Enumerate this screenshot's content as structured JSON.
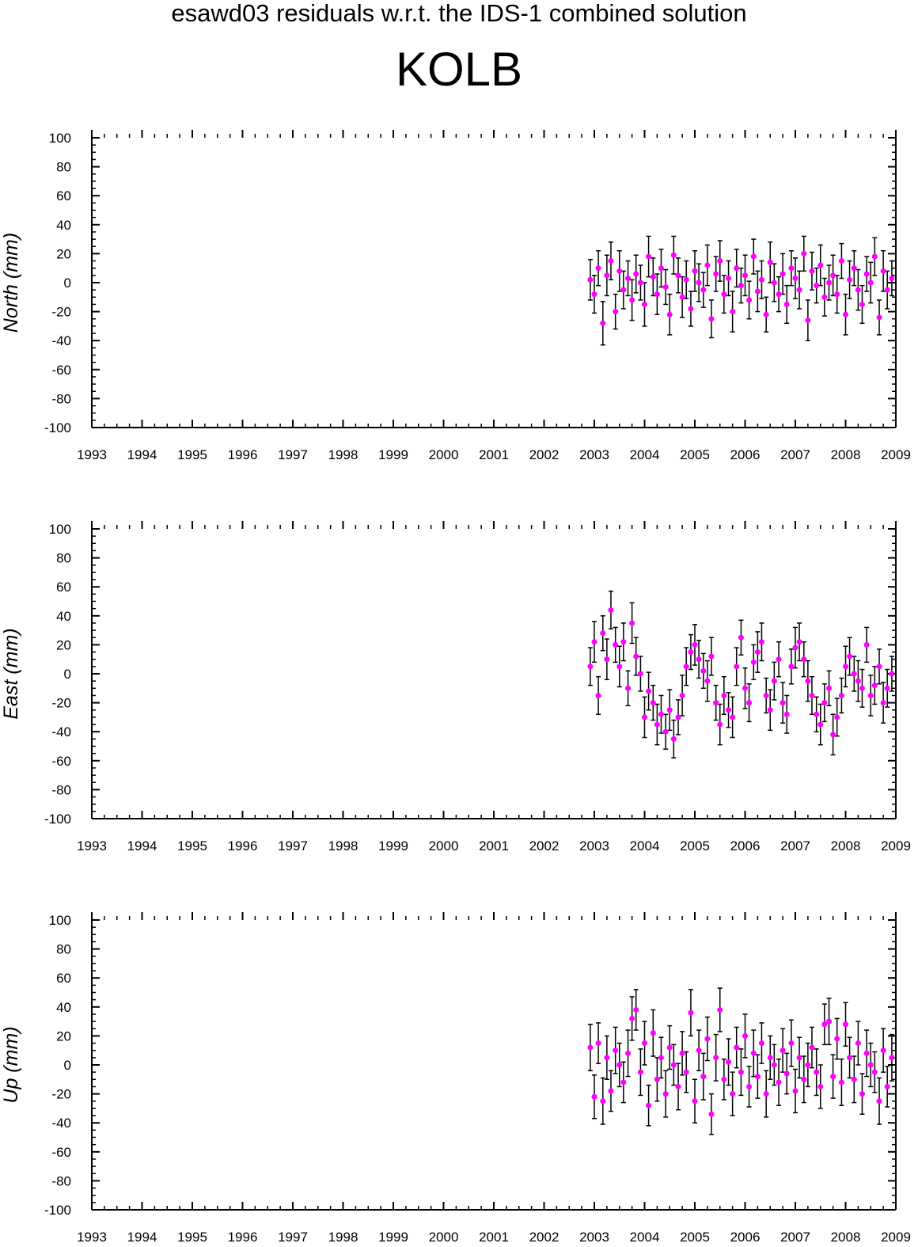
{
  "title": "esawd03 residuals w.r.t. the IDS-1 combined solution",
  "station": "KOLB",
  "colors": {
    "points": "#ff00ff",
    "error_bars": "#000000",
    "axes": "#000000"
  },
  "chart_data": [
    {
      "type": "scatter",
      "panel": "north",
      "ylabel": "North (mm)",
      "xlim": [
        1993,
        2009
      ],
      "ylim": [
        -100,
        100
      ],
      "x_ticks": [
        1993,
        1994,
        1995,
        1996,
        1997,
        1998,
        1999,
        2000,
        2001,
        2002,
        2003,
        2004,
        2005,
        2006,
        2007,
        2008,
        2009
      ],
      "y_ticks": [
        100,
        80,
        60,
        40,
        20,
        0,
        -20,
        -40,
        -60,
        -80,
        -100
      ],
      "grid": false,
      "series": [
        {
          "x": [
            2002.92,
            2003.0,
            2003.08,
            2003.17,
            2003.25,
            2003.33,
            2003.42,
            2003.5,
            2003.58,
            2003.67,
            2003.75,
            2003.83,
            2003.92,
            2004.0,
            2004.08,
            2004.17,
            2004.25,
            2004.33,
            2004.42,
            2004.5,
            2004.58,
            2004.67,
            2004.75,
            2004.83,
            2004.92,
            2005.0,
            2005.08,
            2005.17,
            2005.25,
            2005.33,
            2005.42,
            2005.5,
            2005.58,
            2005.67,
            2005.75,
            2005.83,
            2005.92,
            2006.0,
            2006.08,
            2006.17,
            2006.25,
            2006.33,
            2006.42,
            2006.5,
            2006.58,
            2006.67,
            2006.75,
            2006.83,
            2006.92,
            2007.0,
            2007.08,
            2007.17,
            2007.25,
            2007.33,
            2007.42,
            2007.5,
            2007.58,
            2007.67,
            2007.75,
            2007.83,
            2007.92,
            2008.0,
            2008.08,
            2008.17,
            2008.25,
            2008.33,
            2008.42,
            2008.5,
            2008.58,
            2008.67,
            2008.75,
            2008.83,
            2008.92
          ],
          "y": [
            2,
            -8,
            10,
            -28,
            5,
            15,
            -20,
            8,
            -5,
            3,
            -12,
            6,
            0,
            -15,
            18,
            4,
            -8,
            10,
            -3,
            -22,
            19,
            5,
            -10,
            2,
            -18,
            8,
            0,
            -5,
            12,
            -25,
            6,
            15,
            -8,
            3,
            -20,
            10,
            -2,
            5,
            -12,
            18,
            -6,
            2,
            -22,
            14,
            0,
            -8,
            6,
            -15,
            10,
            3,
            -5,
            20,
            -26,
            8,
            -2,
            12,
            -10,
            0,
            5,
            -8,
            15,
            -22,
            2,
            10,
            -5,
            -15,
            6,
            0,
            18,
            -24,
            8,
            -5,
            3
          ],
          "err": [
            14,
            13,
            12,
            15,
            14,
            13,
            12,
            14,
            13,
            12,
            14,
            13,
            12,
            15,
            14,
            13,
            14,
            13,
            12,
            14,
            13,
            12,
            14,
            13,
            12,
            14,
            13,
            12,
            14,
            13,
            12,
            14,
            13,
            12,
            14,
            13,
            12,
            14,
            13,
            12,
            14,
            13,
            12,
            14,
            13,
            12,
            14,
            13,
            12,
            14,
            13,
            12,
            14,
            13,
            12,
            14,
            13,
            12,
            14,
            13,
            12,
            14,
            13,
            12,
            14,
            13,
            12,
            14,
            13,
            12,
            14,
            13,
            12
          ]
        }
      ]
    },
    {
      "type": "scatter",
      "panel": "east",
      "ylabel": "East (mm)",
      "xlim": [
        1993,
        2009
      ],
      "ylim": [
        -100,
        100
      ],
      "x_ticks": [
        1993,
        1994,
        1995,
        1996,
        1997,
        1998,
        1999,
        2000,
        2001,
        2002,
        2003,
        2004,
        2005,
        2006,
        2007,
        2008,
        2009
      ],
      "y_ticks": [
        100,
        80,
        60,
        40,
        20,
        0,
        -20,
        -40,
        -60,
        -80,
        -100
      ],
      "grid": false,
      "series": [
        {
          "x": [
            2002.92,
            2003.0,
            2003.08,
            2003.17,
            2003.25,
            2003.33,
            2003.42,
            2003.5,
            2003.58,
            2003.67,
            2003.75,
            2003.83,
            2003.92,
            2004.0,
            2004.08,
            2004.17,
            2004.25,
            2004.33,
            2004.42,
            2004.5,
            2004.58,
            2004.67,
            2004.75,
            2004.83,
            2004.92,
            2005.0,
            2005.08,
            2005.17,
            2005.25,
            2005.33,
            2005.42,
            2005.5,
            2005.58,
            2005.67,
            2005.75,
            2005.83,
            2005.92,
            2006.0,
            2006.08,
            2006.17,
            2006.25,
            2006.33,
            2006.42,
            2006.5,
            2006.58,
            2006.67,
            2006.75,
            2006.83,
            2006.92,
            2007.0,
            2007.08,
            2007.17,
            2007.25,
            2007.33,
            2007.42,
            2007.5,
            2007.58,
            2007.67,
            2007.75,
            2007.83,
            2007.92,
            2008.0,
            2008.08,
            2008.17,
            2008.25,
            2008.33,
            2008.42,
            2008.5,
            2008.58,
            2008.67,
            2008.75,
            2008.83,
            2008.92
          ],
          "y": [
            5,
            22,
            -15,
            28,
            10,
            44,
            20,
            5,
            22,
            -10,
            35,
            12,
            0,
            -30,
            -12,
            -20,
            -35,
            -28,
            -40,
            -25,
            -45,
            -30,
            -15,
            5,
            15,
            20,
            10,
            2,
            -5,
            12,
            -20,
            -35,
            -15,
            -25,
            -30,
            5,
            25,
            -10,
            -20,
            8,
            15,
            22,
            -15,
            -25,
            -5,
            10,
            -20,
            -28,
            5,
            18,
            22,
            10,
            -5,
            -15,
            -28,
            -35,
            -20,
            -10,
            -42,
            -30,
            -15,
            5,
            12,
            0,
            -5,
            -10,
            20,
            -15,
            -8,
            5,
            -20,
            -10,
            0
          ],
          "err": [
            13,
            14,
            13,
            12,
            14,
            13,
            12,
            14,
            13,
            12,
            14,
            13,
            12,
            14,
            13,
            12,
            14,
            13,
            12,
            14,
            13,
            12,
            14,
            13,
            12,
            14,
            13,
            12,
            14,
            13,
            12,
            14,
            13,
            12,
            14,
            13,
            12,
            14,
            13,
            12,
            14,
            13,
            12,
            14,
            13,
            12,
            14,
            13,
            12,
            14,
            13,
            12,
            14,
            13,
            12,
            14,
            13,
            12,
            14,
            13,
            12,
            14,
            13,
            12,
            14,
            13,
            12,
            14,
            13,
            12,
            14,
            13,
            12
          ]
        }
      ]
    },
    {
      "type": "scatter",
      "panel": "up",
      "ylabel": "Up (mm)",
      "xlim": [
        1993,
        2009
      ],
      "ylim": [
        -100,
        100
      ],
      "x_ticks": [
        1993,
        1994,
        1995,
        1996,
        1997,
        1998,
        1999,
        2000,
        2001,
        2002,
        2003,
        2004,
        2005,
        2006,
        2007,
        2008,
        2009
      ],
      "y_ticks": [
        100,
        80,
        60,
        40,
        20,
        0,
        -20,
        -40,
        -60,
        -80,
        -100
      ],
      "grid": false,
      "series": [
        {
          "x": [
            2002.92,
            2003.0,
            2003.08,
            2003.17,
            2003.25,
            2003.33,
            2003.42,
            2003.5,
            2003.58,
            2003.67,
            2003.75,
            2003.83,
            2003.92,
            2004.0,
            2004.08,
            2004.17,
            2004.25,
            2004.33,
            2004.42,
            2004.5,
            2004.58,
            2004.67,
            2004.75,
            2004.83,
            2004.92,
            2005.0,
            2005.08,
            2005.17,
            2005.25,
            2005.33,
            2005.42,
            2005.5,
            2005.58,
            2005.67,
            2005.75,
            2005.83,
            2005.92,
            2006.0,
            2006.08,
            2006.17,
            2006.25,
            2006.33,
            2006.42,
            2006.5,
            2006.58,
            2006.67,
            2006.75,
            2006.83,
            2006.92,
            2007.0,
            2007.08,
            2007.17,
            2007.25,
            2007.33,
            2007.42,
            2007.5,
            2007.58,
            2007.67,
            2007.75,
            2007.83,
            2007.92,
            2008.0,
            2008.08,
            2008.17,
            2008.25,
            2008.33,
            2008.42,
            2008.5,
            2008.58,
            2008.67,
            2008.75,
            2008.83,
            2008.92
          ],
          "y": [
            12,
            -22,
            15,
            -25,
            5,
            -18,
            10,
            0,
            -12,
            8,
            32,
            38,
            -5,
            15,
            -28,
            22,
            -10,
            5,
            -20,
            12,
            0,
            -15,
            8,
            -5,
            36,
            -25,
            10,
            -8,
            18,
            -34,
            5,
            38,
            -10,
            2,
            -20,
            12,
            -5,
            20,
            -15,
            8,
            -8,
            15,
            -20,
            5,
            0,
            -12,
            10,
            -6,
            15,
            -18,
            5,
            -10,
            0,
            12,
            -5,
            -15,
            28,
            30,
            -8,
            18,
            -12,
            28,
            5,
            -10,
            15,
            -20,
            8,
            0,
            -5,
            -25,
            10,
            -15,
            5
          ],
          "err": [
            16,
            15,
            14,
            16,
            15,
            14,
            16,
            15,
            14,
            16,
            15,
            14,
            16,
            15,
            14,
            16,
            15,
            14,
            16,
            15,
            14,
            16,
            15,
            14,
            16,
            15,
            14,
            16,
            15,
            14,
            16,
            15,
            14,
            16,
            15,
            14,
            16,
            15,
            14,
            16,
            15,
            14,
            16,
            15,
            14,
            16,
            15,
            14,
            16,
            15,
            14,
            16,
            15,
            14,
            16,
            15,
            14,
            16,
            15,
            14,
            16,
            15,
            14,
            16,
            15,
            14,
            16,
            15,
            14,
            16,
            15,
            14,
            16
          ]
        }
      ]
    }
  ]
}
